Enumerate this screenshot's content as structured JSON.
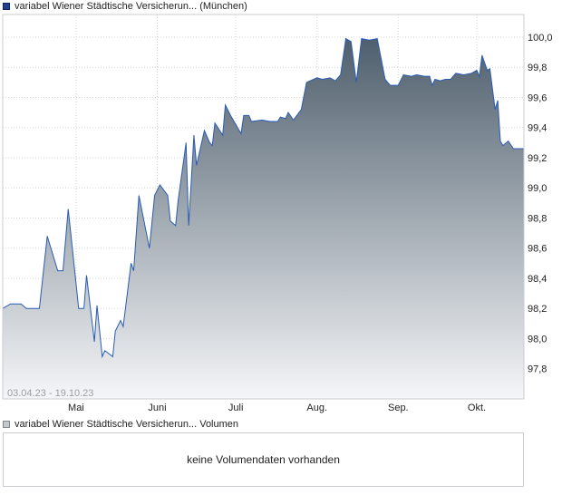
{
  "legend": {
    "price_label": "variabel Wiener Städtische Versicherun... (München)",
    "volume_label": "variabel Wiener Städtische Versicherun... Volumen"
  },
  "range_label": "03.04.23 - 19.10.23",
  "volume_panel": {
    "message": "keine Volumendaten vorhanden"
  },
  "colors": {
    "line": "#2a5cb4",
    "fill_top": "#4f5f6d",
    "fill_bottom": "#f5f6f8",
    "grid": "#d4d7db"
  },
  "chart_data": {
    "type": "area",
    "x_range": [
      "2023-04-03",
      "2023-10-19"
    ],
    "ylim": [
      97.6,
      100.15
    ],
    "y_ticks": [
      "97,8",
      "98,0",
      "98,2",
      "98,4",
      "98,6",
      "98,8",
      "99,0",
      "99,2",
      "99,4",
      "99,6",
      "99,8",
      "100,0"
    ],
    "x_ticks": [
      {
        "label": "Mai",
        "date": "2023-05-01"
      },
      {
        "label": "Juni",
        "date": "2023-06-01"
      },
      {
        "label": "Juli",
        "date": "2023-07-01"
      },
      {
        "label": "Aug.",
        "date": "2023-08-01"
      },
      {
        "label": "Sep.",
        "date": "2023-09-01"
      },
      {
        "label": "Okt.",
        "date": "2023-10-01"
      }
    ],
    "grid": true,
    "series": [
      {
        "points": [
          [
            "2023-04-03",
            98.2
          ],
          [
            "2023-04-06",
            98.23
          ],
          [
            "2023-04-10",
            98.23
          ],
          [
            "2023-04-12",
            98.2
          ],
          [
            "2023-04-17",
            98.2
          ],
          [
            "2023-04-20",
            98.68
          ],
          [
            "2023-04-24",
            98.45
          ],
          [
            "2023-04-26",
            98.45
          ],
          [
            "2023-04-28",
            98.86
          ],
          [
            "2023-05-02",
            98.2
          ],
          [
            "2023-05-04",
            98.2
          ],
          [
            "2023-05-05",
            98.42
          ],
          [
            "2023-05-08",
            97.98
          ],
          [
            "2023-05-09",
            98.22
          ],
          [
            "2023-05-11",
            97.88
          ],
          [
            "2023-05-12",
            97.92
          ],
          [
            "2023-05-15",
            97.88
          ],
          [
            "2023-05-16",
            98.05
          ],
          [
            "2023-05-18",
            98.12
          ],
          [
            "2023-05-19",
            98.08
          ],
          [
            "2023-05-22",
            98.5
          ],
          [
            "2023-05-23",
            98.45
          ],
          [
            "2023-05-25",
            98.95
          ],
          [
            "2023-05-29",
            98.6
          ],
          [
            "2023-05-31",
            98.95
          ],
          [
            "2023-06-02",
            99.02
          ],
          [
            "2023-06-05",
            98.95
          ],
          [
            "2023-06-06",
            98.78
          ],
          [
            "2023-06-08",
            98.75
          ],
          [
            "2023-06-09",
            98.92
          ],
          [
            "2023-06-12",
            99.3
          ],
          [
            "2023-06-13",
            98.75
          ],
          [
            "2023-06-15",
            99.35
          ],
          [
            "2023-06-16",
            99.15
          ],
          [
            "2023-06-19",
            99.38
          ],
          [
            "2023-06-21",
            99.3
          ],
          [
            "2023-06-22",
            99.28
          ],
          [
            "2023-06-23",
            99.43
          ],
          [
            "2023-06-26",
            99.35
          ],
          [
            "2023-06-27",
            99.55
          ],
          [
            "2023-06-29",
            99.48
          ],
          [
            "2023-07-01",
            99.42
          ],
          [
            "2023-07-03",
            99.36
          ],
          [
            "2023-07-04",
            99.48
          ],
          [
            "2023-07-06",
            99.48
          ],
          [
            "2023-07-07",
            99.44
          ],
          [
            "2023-07-11",
            99.45
          ],
          [
            "2023-07-14",
            99.44
          ],
          [
            "2023-07-17",
            99.44
          ],
          [
            "2023-07-18",
            99.47
          ],
          [
            "2023-07-20",
            99.46
          ],
          [
            "2023-07-21",
            99.5
          ],
          [
            "2023-07-23",
            99.45
          ],
          [
            "2023-07-26",
            99.52
          ],
          [
            "2023-07-28",
            99.7
          ],
          [
            "2023-08-01",
            99.73
          ],
          [
            "2023-08-03",
            99.72
          ],
          [
            "2023-08-06",
            99.73
          ],
          [
            "2023-08-08",
            99.71
          ],
          [
            "2023-08-10",
            99.75
          ],
          [
            "2023-08-12",
            99.99
          ],
          [
            "2023-08-14",
            99.97
          ],
          [
            "2023-08-16",
            99.7
          ],
          [
            "2023-08-18",
            99.99
          ],
          [
            "2023-08-21",
            99.98
          ],
          [
            "2023-08-24",
            99.99
          ],
          [
            "2023-08-27",
            99.72
          ],
          [
            "2023-08-29",
            99.68
          ],
          [
            "2023-09-01",
            99.68
          ],
          [
            "2023-09-03",
            99.75
          ],
          [
            "2023-09-06",
            99.74
          ],
          [
            "2023-09-08",
            99.75
          ],
          [
            "2023-09-11",
            99.74
          ],
          [
            "2023-09-13",
            99.74
          ],
          [
            "2023-09-14",
            99.68
          ],
          [
            "2023-09-15",
            99.72
          ],
          [
            "2023-09-17",
            99.71
          ],
          [
            "2023-09-19",
            99.72
          ],
          [
            "2023-09-21",
            99.72
          ],
          [
            "2023-09-23",
            99.76
          ],
          [
            "2023-09-26",
            99.75
          ],
          [
            "2023-09-29",
            99.76
          ],
          [
            "2023-10-01",
            99.78
          ],
          [
            "2023-10-02",
            99.74
          ],
          [
            "2023-10-03",
            99.88
          ],
          [
            "2023-10-05",
            99.78
          ],
          [
            "2023-10-06",
            99.79
          ],
          [
            "2023-10-08",
            99.52
          ],
          [
            "2023-10-09",
            99.58
          ],
          [
            "2023-10-10",
            99.31
          ],
          [
            "2023-10-11",
            99.28
          ],
          [
            "2023-10-13",
            99.31
          ],
          [
            "2023-10-15",
            99.26
          ],
          [
            "2023-10-19",
            99.26
          ]
        ]
      }
    ]
  }
}
